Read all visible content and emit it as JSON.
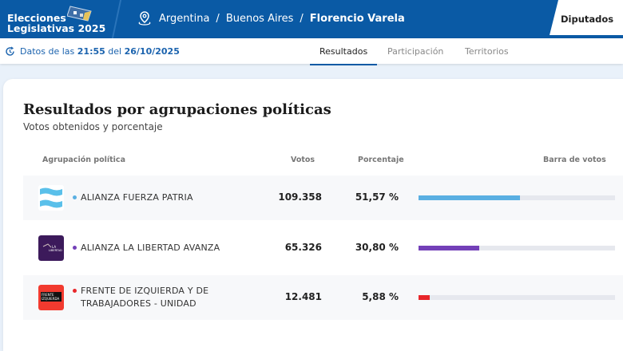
{
  "header": {
    "brand_line1": "Elecciones",
    "brand_line2": "Legislativas 2025",
    "breadcrumb": [
      "Argentina",
      "Buenos Aires",
      "Florencio Varela"
    ],
    "separator": "/",
    "active_tab": "Diputados"
  },
  "subbar": {
    "prefix": "Datos de las",
    "time": "21:55",
    "mid": "del",
    "date": "26/10/2025",
    "tabs": [
      "Resultados",
      "Participación",
      "Territorios"
    ],
    "active": "Resultados"
  },
  "section": {
    "title": "Resultados por agrupaciones políticas",
    "subtitle": "Votos obtenidos y porcentaje"
  },
  "columns": {
    "party": "Agrupación política",
    "votes": "Votos",
    "percent": "Porcentaje",
    "bar": "Barra de votos"
  },
  "rows": [
    {
      "name": "ALIANZA FUERZA PATRIA",
      "votes": "109.358",
      "percent": "51,57 %",
      "value": 51.57,
      "color": "#5aafe2"
    },
    {
      "name": "ALIANZA LA LIBERTAD AVANZA",
      "votes": "65.326",
      "percent": "30,80 %",
      "value": 30.8,
      "color": "#7340b8"
    },
    {
      "name": "FRENTE DE IZQUIERDA Y DE TRABAJADORES - UNIDAD",
      "votes": "12.481",
      "percent": "5,88 %",
      "value": 5.88,
      "color": "#e8262a"
    }
  ]
}
